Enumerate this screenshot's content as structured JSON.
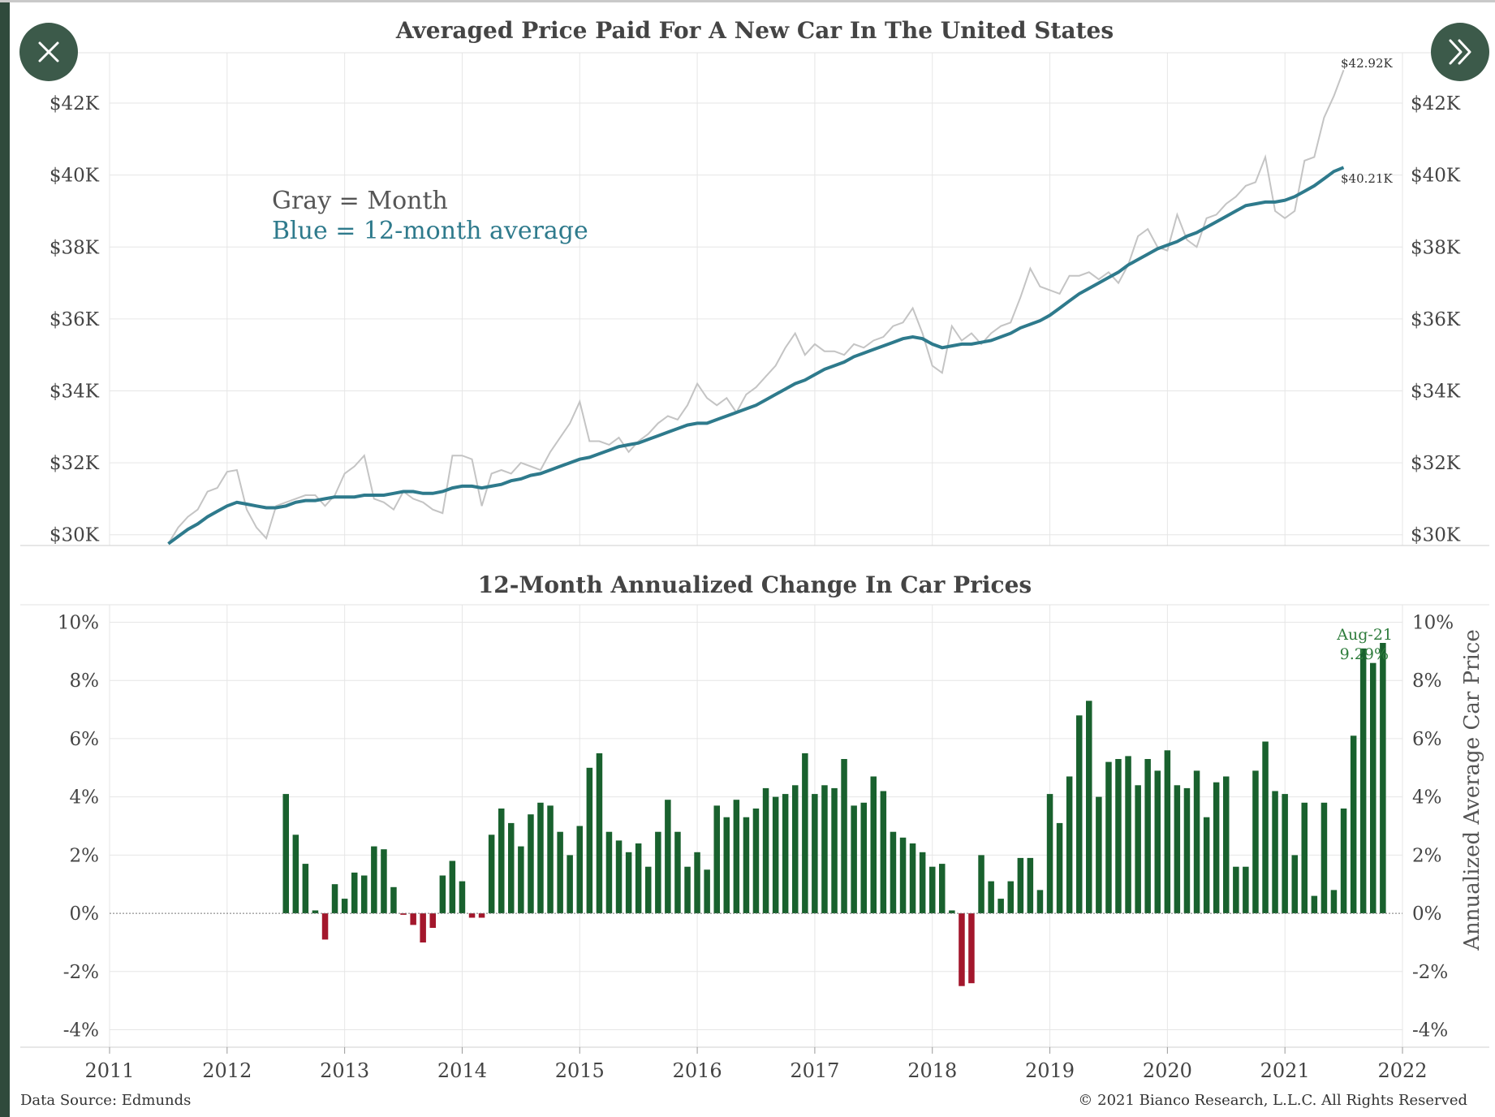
{
  "colors": {
    "month_line": "#c4c4c4",
    "avg_line": "#2e7a8c",
    "bar_positive": "#19612e",
    "bar_negative": "#a3172c",
    "grid": "#e6e6e6",
    "annotation_green": "#2f7d3d",
    "legend_gray": "#555555",
    "legend_blue": "#2e7a8c"
  },
  "footer": {
    "source": "Data Source: Edmunds",
    "copyright": "© 2021  Bianco Research, L.L.C. All Rights Reserved"
  },
  "buttons": {
    "close_icon": "close-icon",
    "next_icon": "double-chevron-right-icon"
  },
  "chart_data": [
    {
      "type": "line",
      "title": "Averaged Price Paid For A New Car In The United States",
      "legend": [
        "Gray = Month",
        "Blue = 12-month average"
      ],
      "y_ticks": [
        "$30K",
        "$32K",
        "$34K",
        "$36K",
        "$38K",
        "$40K",
        "$42K"
      ],
      "ylim": [
        29700,
        43400
      ],
      "xlim": [
        2011.0,
        2022.0
      ],
      "x_start": 2011.5,
      "x_step": 0.08333,
      "end_labels": {
        "month": "$42.92K",
        "average": "$40.21K"
      },
      "series": [
        {
          "key": "month",
          "values": [
            29750,
            30200,
            30500,
            30700,
            31200,
            31300,
            31750,
            31800,
            30700,
            30200,
            29900,
            30800,
            30900,
            31000,
            31100,
            31100,
            30800,
            31100,
            31700,
            31900,
            32200,
            31000,
            30900,
            30700,
            31200,
            31000,
            30900,
            30700,
            30600,
            32200,
            32200,
            32100,
            30800,
            31700,
            31800,
            31700,
            32000,
            31900,
            31800,
            32300,
            32700,
            33100,
            33700,
            32600,
            32600,
            32500,
            32700,
            32300,
            32600,
            32800,
            33100,
            33300,
            33200,
            33600,
            34200,
            33800,
            33600,
            33800,
            33400,
            33900,
            34100,
            34400,
            34700,
            35200,
            35600,
            35000,
            35300,
            35100,
            35100,
            35000,
            35300,
            35200,
            35400,
            35500,
            35800,
            35900,
            36300,
            35600,
            34700,
            34500,
            35800,
            35400,
            35600,
            35300,
            35600,
            35800,
            35900,
            36600,
            37400,
            36900,
            36800,
            36700,
            37200,
            37200,
            37300,
            37100,
            37300,
            37000,
            37500,
            38300,
            38500,
            38000,
            37900,
            38900,
            38200,
            38000,
            38800,
            38900,
            39200,
            39400,
            39700,
            39800,
            40500,
            39000,
            38800,
            39000,
            40400,
            40500,
            41600,
            42200,
            42920
          ]
        },
        {
          "key": "average",
          "values": [
            29750,
            29950,
            30150,
            30300,
            30500,
            30650,
            30800,
            30900,
            30850,
            30800,
            30750,
            30750,
            30800,
            30900,
            30950,
            30950,
            31000,
            31050,
            31050,
            31050,
            31100,
            31100,
            31100,
            31150,
            31200,
            31200,
            31150,
            31150,
            31200,
            31300,
            31350,
            31350,
            31300,
            31350,
            31400,
            31500,
            31550,
            31650,
            31700,
            31800,
            31900,
            32000,
            32100,
            32150,
            32250,
            32350,
            32450,
            32500,
            32550,
            32650,
            32750,
            32850,
            32950,
            33050,
            33100,
            33100,
            33200,
            33300,
            33400,
            33500,
            33600,
            33750,
            33900,
            34050,
            34200,
            34300,
            34450,
            34600,
            34700,
            34800,
            34950,
            35050,
            35150,
            35250,
            35350,
            35450,
            35500,
            35450,
            35300,
            35200,
            35250,
            35300,
            35300,
            35350,
            35400,
            35500,
            35600,
            35750,
            35850,
            35950,
            36100,
            36300,
            36500,
            36700,
            36850,
            37000,
            37150,
            37300,
            37500,
            37650,
            37800,
            37950,
            38050,
            38150,
            38300,
            38400,
            38550,
            38700,
            38850,
            39000,
            39150,
            39200,
            39250,
            39250,
            39300,
            39400,
            39550,
            39700,
            39900,
            40100,
            40210
          ]
        }
      ]
    },
    {
      "type": "bar",
      "title": "12-Month Annualized Change In Car Prices",
      "ylabel": "Annualized Average Car Price",
      "y_ticks": [
        "-4%",
        "-2%",
        "0%",
        "2%",
        "4%",
        "6%",
        "8%",
        "10%"
      ],
      "ylim": [
        -4.6,
        10.6
      ],
      "x_ticks": [
        "2011",
        "2012",
        "2013",
        "2014",
        "2015",
        "2016",
        "2017",
        "2018",
        "2019",
        "2020",
        "2021",
        "2022"
      ],
      "xlim": [
        2011.0,
        2022.0
      ],
      "x_start": 2012.5,
      "x_step": 0.08333,
      "annotation": {
        "label": "Aug-21",
        "value_label": "9.29%"
      },
      "values": [
        4.1,
        2.7,
        1.7,
        0.1,
        -0.9,
        1.0,
        0.5,
        1.4,
        1.3,
        2.3,
        2.2,
        0.9,
        -0.05,
        -0.4,
        -1.0,
        -0.5,
        1.3,
        1.8,
        1.1,
        -0.15,
        -0.15,
        2.7,
        3.6,
        3.1,
        2.3,
        3.4,
        3.8,
        3.7,
        2.8,
        2.0,
        3.0,
        5.0,
        5.5,
        2.8,
        2.5,
        2.1,
        2.4,
        1.6,
        2.8,
        3.9,
        2.8,
        1.6,
        2.1,
        1.5,
        3.7,
        3.3,
        3.9,
        3.3,
        3.6,
        4.3,
        4.0,
        4.1,
        4.4,
        5.5,
        4.1,
        4.4,
        4.3,
        5.3,
        3.7,
        3.8,
        4.7,
        4.2,
        2.8,
        2.6,
        2.4,
        2.1,
        1.6,
        1.7,
        0.1,
        -2.5,
        -2.4,
        2.0,
        1.1,
        0.5,
        1.1,
        1.9,
        1.9,
        0.8,
        4.1,
        3.1,
        4.7,
        6.8,
        7.3,
        4.0,
        5.2,
        5.3,
        5.4,
        4.4,
        5.3,
        4.9,
        5.6,
        4.4,
        4.3,
        4.9,
        3.3,
        4.5,
        4.7,
        1.6,
        1.6,
        4.9,
        5.9,
        4.2,
        4.1,
        2.0,
        3.8,
        0.6,
        3.8,
        0.8,
        3.6,
        6.1,
        9.1,
        8.6,
        9.29
      ]
    }
  ]
}
